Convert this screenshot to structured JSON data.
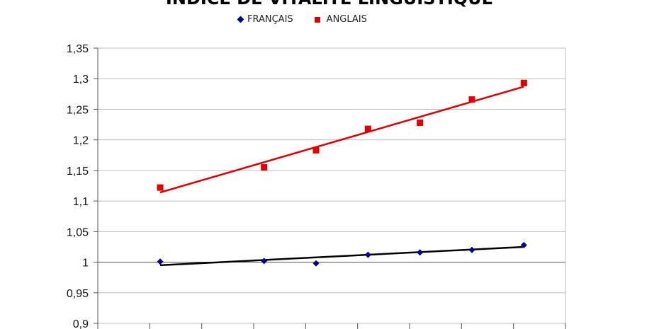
{
  "chart_data": {
    "type": "scatter",
    "title": "INDICE DE VITALITÉ LINGUISTIQUE",
    "xlabel": "",
    "ylabel": "",
    "ylim": [
      0.9,
      1.35
    ],
    "yticks": [
      "0,9",
      "0,95",
      "1",
      "1,05",
      "1,1",
      "1,15",
      "1,2",
      "1,25",
      "1,3",
      "1,35"
    ],
    "ytick_values": [
      0.9,
      0.95,
      1.0,
      1.05,
      1.1,
      1.15,
      1.2,
      1.25,
      1.3,
      1.35
    ],
    "x_categories": 9,
    "grid": true,
    "legend_position": "top",
    "series": [
      {
        "name": "FRANÇAIS",
        "marker": "diamond",
        "color": "#00008b",
        "x": [
          1.2,
          3.2,
          4.2,
          5.2,
          6.2,
          7.2,
          8.2
        ],
        "values": [
          1.001,
          1.002,
          0.998,
          1.012,
          1.016,
          1.02,
          1.028
        ],
        "trendline": {
          "x": [
            1.2,
            8.2
          ],
          "y": [
            0.995,
            1.025
          ],
          "color": "#000000"
        }
      },
      {
        "name": "ANGLAIS",
        "marker": "square",
        "color": "#e00000",
        "x": [
          1.2,
          3.2,
          4.2,
          5.2,
          6.2,
          7.2,
          8.2
        ],
        "values": [
          1.122,
          1.155,
          1.183,
          1.218,
          1.228,
          1.266,
          1.293
        ],
        "trendline": {
          "x": [
            1.2,
            8.2
          ],
          "y": [
            1.114,
            1.287
          ],
          "color": "#e00000"
        }
      }
    ]
  }
}
